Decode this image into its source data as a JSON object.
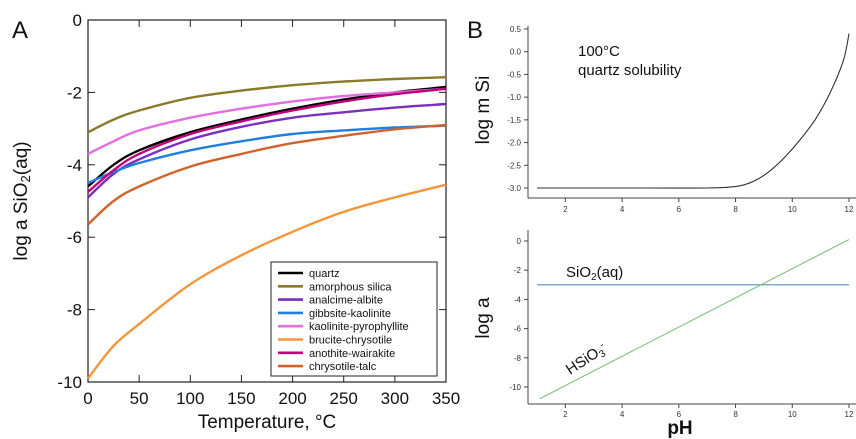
{
  "panel_labels": {
    "a": "A",
    "b": "B"
  },
  "chart_data": [
    {
      "id": "A",
      "type": "line",
      "xlabel": "Temperature, °C",
      "ylabel_main": "log a SiO",
      "ylabel_sub": "2",
      "ylabel_tail": "(aq)",
      "xlim": [
        0,
        350
      ],
      "ylim": [
        -10,
        0
      ],
      "xticks": [
        "0",
        "50",
        "100",
        "150",
        "200",
        "250",
        "300",
        "350"
      ],
      "yticks": [
        "0",
        "-2",
        "-4",
        "-6",
        "-8",
        "-10"
      ],
      "legend_position": "bottom-right",
      "series": [
        {
          "name": "quartz",
          "color": "#000000",
          "x": [
            0,
            25,
            50,
            100,
            150,
            200,
            250,
            300,
            350
          ],
          "y": [
            -4.6,
            -4.0,
            -3.6,
            -3.1,
            -2.75,
            -2.45,
            -2.2,
            -2.0,
            -1.85
          ]
        },
        {
          "name": "amorphous silica",
          "color": "#8a7a2a",
          "x": [
            0,
            25,
            50,
            100,
            150,
            200,
            250,
            300,
            350
          ],
          "y": [
            -3.1,
            -2.75,
            -2.5,
            -2.15,
            -1.95,
            -1.8,
            -1.7,
            -1.63,
            -1.58
          ]
        },
        {
          "name": "analcime-albite",
          "color": "#7b2fbf",
          "x": [
            0,
            25,
            50,
            100,
            150,
            200,
            250,
            300,
            350
          ],
          "y": [
            -4.9,
            -4.25,
            -3.85,
            -3.3,
            -2.95,
            -2.7,
            -2.55,
            -2.42,
            -2.32
          ]
        },
        {
          "name": "gibbsite-kaolinite",
          "color": "#1f7fe0",
          "x": [
            0,
            25,
            50,
            100,
            150,
            200,
            250,
            300,
            350
          ],
          "y": [
            -4.5,
            -4.2,
            -3.95,
            -3.6,
            -3.35,
            -3.15,
            -3.05,
            -2.97,
            -2.92
          ]
        },
        {
          "name": "kaolinite-pyrophyllite",
          "color": "#e36ee0",
          "x": [
            0,
            25,
            50,
            100,
            150,
            200,
            250,
            300,
            350
          ],
          "y": [
            -3.7,
            -3.35,
            -3.05,
            -2.7,
            -2.45,
            -2.25,
            -2.1,
            -2.0,
            -1.9
          ]
        },
        {
          "name": "brucite-chrysotile",
          "color": "#f4953a",
          "x": [
            0,
            25,
            50,
            100,
            150,
            200,
            250,
            300,
            350
          ],
          "y": [
            -9.9,
            -9.0,
            -8.4,
            -7.3,
            -6.5,
            -5.85,
            -5.3,
            -4.9,
            -4.55
          ]
        },
        {
          "name": "anothite-wairakite",
          "color": "#c2007a",
          "x": [
            0,
            25,
            50,
            100,
            150,
            200,
            250,
            300,
            350
          ],
          "y": [
            -4.75,
            -4.15,
            -3.7,
            -3.15,
            -2.8,
            -2.5,
            -2.25,
            -2.05,
            -1.9
          ]
        },
        {
          "name": "chrysotile-talc",
          "color": "#d2622a",
          "x": [
            0,
            25,
            50,
            100,
            150,
            200,
            250,
            300,
            350
          ],
          "y": [
            -5.65,
            -5.0,
            -4.6,
            -4.05,
            -3.7,
            -3.4,
            -3.2,
            -3.02,
            -2.9
          ]
        }
      ]
    },
    {
      "id": "B-top",
      "type": "line",
      "xlabel": "",
      "ylabel": "log m Si",
      "annotation": [
        "100°C",
        "quartz solubility"
      ],
      "xlim": [
        1,
        12
      ],
      "ylim": [
        -3.1,
        0.5
      ],
      "xticks": [
        "2",
        "4",
        "6",
        "8",
        "10",
        "12"
      ],
      "yticks": [
        "0.5",
        "0.0",
        "-0.5",
        "-1.0",
        "-1.5",
        "-2.0",
        "-2.5",
        "-3.0"
      ],
      "series": [
        {
          "color": "#333333",
          "x": [
            1,
            3,
            5,
            7,
            7.8,
            8.3,
            8.8,
            9.3,
            9.8,
            10.3,
            10.8,
            11.3,
            11.8,
            12
          ],
          "y": [
            -3.0,
            -3.0,
            -3.0,
            -3.0,
            -2.98,
            -2.93,
            -2.8,
            -2.58,
            -2.28,
            -1.92,
            -1.5,
            -0.95,
            -0.2,
            0.4
          ]
        }
      ]
    },
    {
      "id": "B-bottom",
      "type": "line",
      "xlabel": "pH",
      "ylabel": "log a",
      "xlim": [
        1,
        12
      ],
      "ylim": [
        -11,
        1
      ],
      "xticks": [
        "2",
        "4",
        "6",
        "8",
        "10",
        "12"
      ],
      "yticks": [
        "0",
        "-2",
        "-4",
        "-6",
        "-8",
        "-10"
      ],
      "series": [
        {
          "label_main": "SiO",
          "label_sub": "2",
          "label_tail": "(aq)",
          "color": "#5a8fc0",
          "x": [
            1,
            12
          ],
          "y": [
            -3.0,
            -3.0
          ]
        },
        {
          "label_main": "HSiO",
          "label_sub": "3",
          "label_sup": "-",
          "color": "#7fbf7f",
          "x": [
            1.1,
            12
          ],
          "y": [
            -10.8,
            0.1
          ]
        }
      ]
    }
  ]
}
